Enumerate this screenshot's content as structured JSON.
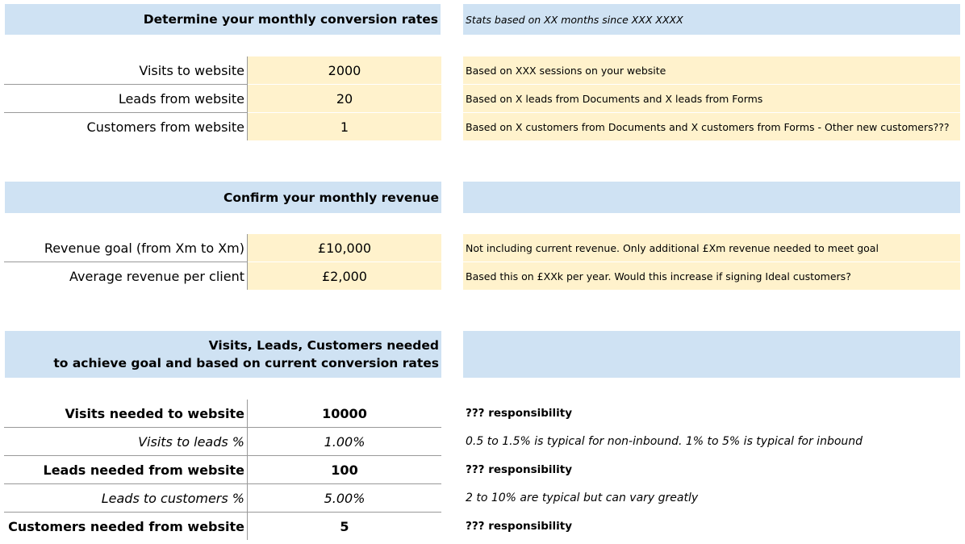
{
  "sections": [
    {
      "title": "Determine your monthly conversion rates",
      "note": "Stats based on XX months since XXX XXXX",
      "rows": [
        {
          "label": "Visits to website",
          "value": "2000",
          "note": "Based on XXX sessions on your website"
        },
        {
          "label": "Leads from website",
          "value": "20",
          "note": "Based on X leads from Documents and X leads from Forms"
        },
        {
          "label": "Customers from website",
          "value": "1",
          "note": "Based on X customers from Documents and X customers from Forms - Other new customers???"
        }
      ]
    },
    {
      "title": "Confirm your monthly revenue",
      "rows": [
        {
          "label": "Revenue goal (from Xm to Xm)",
          "value": "£10,000",
          "note": "Not including current revenue. Only additional £Xm revenue needed to meet goal"
        },
        {
          "label": "Average revenue per client",
          "value": "£2,000",
          "note": "Based this on £XXk per year. Would this increase if signing Ideal customers?"
        }
      ]
    },
    {
      "title": "Visits, Leads, Customers needed\nto achieve goal and based on current conversion rates",
      "rows": [
        {
          "label": "Visits needed to website",
          "value": "10000",
          "note": "??? responsibility"
        },
        {
          "label": "Visits to leads %",
          "value": "1.00%",
          "note": "0.5 to 1.5% is typical for non-inbound. 1% to 5% is typical for inbound"
        },
        {
          "label": "Leads needed from website",
          "value": "100",
          "note": "??? responsibility"
        },
        {
          "label": "Leads to customers %",
          "value": "5.00%",
          "note": "2 to 10% are typical but can vary greatly"
        },
        {
          "label": "Customers needed from website",
          "value": "5",
          "note": "??? responsibility"
        }
      ]
    }
  ]
}
